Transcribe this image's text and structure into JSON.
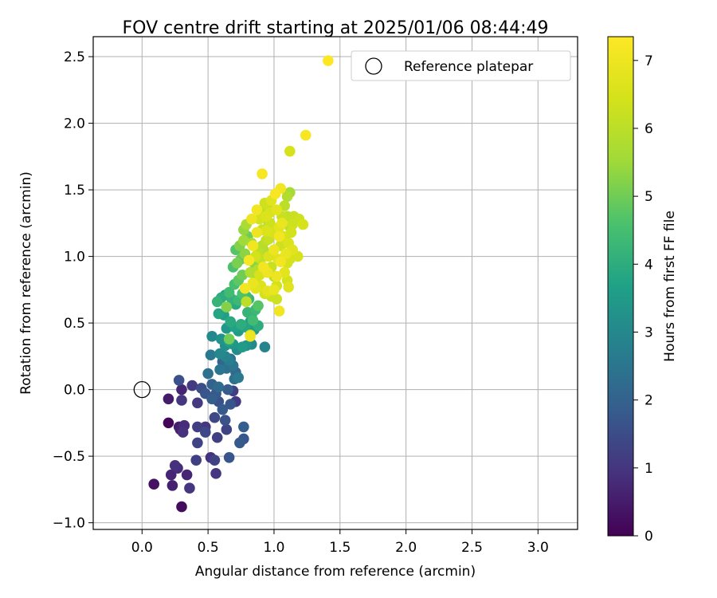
{
  "chart_data": {
    "type": "scatter",
    "title": "FOV centre drift starting at 2025/01/06 08:44:49",
    "xlabel": "Angular distance from reference (arcmin)",
    "ylabel": "Rotation from reference (arcmin)",
    "xlim": [
      -0.37,
      3.3
    ],
    "ylim": [
      -1.05,
      2.65
    ],
    "xticks": [
      "0.0",
      "0.5",
      "1.0",
      "1.5",
      "2.0",
      "2.5",
      "3.0"
    ],
    "yticks": [
      "−1.0",
      "−0.5",
      "0.0",
      "0.5",
      "1.0",
      "1.5",
      "2.0",
      "2.5"
    ],
    "grid": true,
    "legend": {
      "location": "top-right",
      "entries": [
        "Reference platepar"
      ]
    },
    "reference_point": {
      "name": "Reference platepar",
      "x": 0.0,
      "y": 0.0
    },
    "colorbar": {
      "label": "Hours from first FF file",
      "colormap": "viridis",
      "range": [
        0,
        7.35
      ],
      "ticks": [
        "0",
        "1",
        "2",
        "3",
        "4",
        "5",
        "6",
        "7"
      ]
    },
    "points_columns": [
      "x",
      "y",
      "hours"
    ],
    "points": [
      [
        0.3,
        -0.88,
        0.2
      ],
      [
        0.09,
        -0.71,
        0.3
      ],
      [
        0.2,
        -0.25,
        0.1
      ],
      [
        0.22,
        -0.64,
        0.7
      ],
      [
        0.23,
        -0.72,
        0.6
      ],
      [
        0.25,
        -0.57,
        0.9
      ],
      [
        0.27,
        -0.59,
        0.8
      ],
      [
        0.34,
        -0.64,
        0.7
      ],
      [
        0.36,
        -0.74,
        1.0
      ],
      [
        0.2,
        -0.07,
        0.5
      ],
      [
        0.29,
        -0.3,
        0.6
      ],
      [
        0.28,
        -0.28,
        0.5
      ],
      [
        0.31,
        -0.32,
        0.9
      ],
      [
        0.32,
        -0.27,
        0.8
      ],
      [
        0.3,
        0.0,
        0.7
      ],
      [
        0.3,
        -0.08,
        1.0
      ],
      [
        0.28,
        0.07,
        1.6
      ],
      [
        0.38,
        0.03,
        1.1
      ],
      [
        0.42,
        -0.28,
        1.2
      ],
      [
        0.42,
        -0.4,
        1.3
      ],
      [
        0.41,
        -0.53,
        1.2
      ],
      [
        0.42,
        -0.1,
        1.1
      ],
      [
        0.45,
        0.01,
        1.5
      ],
      [
        0.48,
        -0.03,
        1.7
      ],
      [
        0.48,
        -0.28,
        1.0
      ],
      [
        0.48,
        -0.32,
        1.4
      ],
      [
        0.52,
        -0.51,
        0.9
      ],
      [
        0.55,
        -0.53,
        1.3
      ],
      [
        0.56,
        -0.63,
        1.0
      ],
      [
        0.57,
        -0.36,
        1.2
      ],
      [
        0.55,
        -0.21,
        1.4
      ],
      [
        0.56,
        -0.03,
        1.8
      ],
      [
        0.53,
        0.04,
        2.0
      ],
      [
        0.5,
        0.12,
        2.4
      ],
      [
        0.53,
        -0.07,
        1.9
      ],
      [
        0.58,
        -0.09,
        1.6
      ],
      [
        0.58,
        0.02,
        2.2
      ],
      [
        0.61,
        -0.15,
        1.8
      ],
      [
        0.63,
        -0.23,
        1.6
      ],
      [
        0.66,
        -0.51,
        1.7
      ],
      [
        0.64,
        -0.3,
        1.3
      ],
      [
        0.65,
        0.0,
        1.9
      ],
      [
        0.67,
        -0.11,
        1.7
      ],
      [
        0.69,
        -0.01,
        1.2
      ],
      [
        0.71,
        -0.09,
        1.1
      ],
      [
        0.74,
        -0.4,
        1.8
      ],
      [
        0.77,
        -0.37,
        1.7
      ],
      [
        0.77,
        -0.28,
        1.9
      ],
      [
        0.7,
        0.08,
        2.4
      ],
      [
        0.73,
        0.09,
        2.6
      ],
      [
        0.59,
        0.15,
        2.5
      ],
      [
        0.61,
        0.21,
        2.1
      ],
      [
        0.64,
        0.16,
        2.4
      ],
      [
        0.66,
        0.22,
        2.7
      ],
      [
        0.67,
        0.23,
        2.3
      ],
      [
        0.71,
        0.13,
        2.2
      ],
      [
        0.69,
        0.18,
        2.5
      ],
      [
        0.63,
        0.25,
        2.9
      ],
      [
        0.59,
        0.27,
        3.0
      ],
      [
        0.52,
        0.26,
        2.6
      ],
      [
        0.53,
        0.4,
        3.0
      ],
      [
        0.6,
        0.38,
        3.3
      ],
      [
        0.63,
        0.33,
        3.2
      ],
      [
        0.66,
        0.36,
        3.6
      ],
      [
        0.69,
        0.34,
        3.4
      ],
      [
        0.72,
        0.3,
        3.1
      ],
      [
        0.76,
        0.32,
        3.5
      ],
      [
        0.79,
        0.33,
        3.3
      ],
      [
        0.83,
        0.34,
        3.0
      ],
      [
        0.93,
        0.32,
        2.9
      ],
      [
        0.58,
        0.57,
        3.8
      ],
      [
        0.62,
        0.56,
        3.6
      ],
      [
        0.64,
        0.46,
        3.4
      ],
      [
        0.67,
        0.51,
        3.9
      ],
      [
        0.7,
        0.47,
        3.7
      ],
      [
        0.73,
        0.44,
        3.5
      ],
      [
        0.75,
        0.49,
        4.0
      ],
      [
        0.78,
        0.47,
        3.8
      ],
      [
        0.82,
        0.51,
        3.6
      ],
      [
        0.85,
        0.45,
        3.5
      ],
      [
        0.57,
        0.66,
        4.2
      ],
      [
        0.6,
        0.69,
        4.0
      ],
      [
        0.63,
        0.71,
        3.7
      ],
      [
        0.66,
        0.73,
        4.4
      ],
      [
        0.68,
        0.68,
        4.1
      ],
      [
        0.71,
        0.64,
        3.9
      ],
      [
        0.73,
        0.67,
        4.3
      ],
      [
        0.76,
        0.72,
        4.6
      ],
      [
        0.79,
        0.7,
        4.4
      ],
      [
        0.81,
        0.68,
        4.2
      ],
      [
        0.83,
        0.56,
        3.9
      ],
      [
        0.86,
        0.6,
        4.3
      ],
      [
        0.88,
        0.63,
        4.7
      ],
      [
        0.7,
        0.79,
        4.5
      ],
      [
        0.73,
        0.82,
        4.8
      ],
      [
        0.76,
        0.86,
        5.0
      ],
      [
        0.69,
        0.92,
        4.6
      ],
      [
        0.72,
        0.95,
        5.1
      ],
      [
        0.75,
        0.98,
        4.9
      ],
      [
        0.78,
        1.02,
        5.3
      ],
      [
        0.71,
        1.05,
        4.7
      ],
      [
        0.74,
        1.08,
        5.2
      ],
      [
        0.77,
        1.12,
        5.5
      ],
      [
        0.8,
        1.15,
        5.0
      ],
      [
        0.77,
        1.2,
        5.4
      ],
      [
        0.79,
        1.24,
        5.7
      ],
      [
        0.83,
        1.1,
        5.6
      ],
      [
        0.85,
        0.95,
        5.3
      ],
      [
        0.82,
        0.88,
        5.8
      ],
      [
        0.86,
        0.82,
        5.5
      ],
      [
        0.88,
        0.9,
        5.9
      ],
      [
        0.9,
        0.98,
        6.1
      ],
      [
        0.92,
        1.05,
        5.8
      ],
      [
        0.94,
        1.12,
        6.0
      ],
      [
        0.91,
        1.2,
        6.2
      ],
      [
        0.89,
        1.28,
        6.4
      ],
      [
        0.93,
        1.32,
        5.9
      ],
      [
        0.95,
        1.38,
        6.1
      ],
      [
        0.97,
        1.25,
        6.3
      ],
      [
        0.99,
        1.18,
        6.5
      ],
      [
        0.96,
        1.0,
        6.6
      ],
      [
        0.98,
        0.92,
        6.2
      ],
      [
        1.0,
        0.85,
        6.0
      ],
      [
        1.02,
        0.78,
        6.4
      ],
      [
        1.03,
        0.98,
        6.7
      ],
      [
        1.05,
        1.08,
        6.3
      ],
      [
        1.07,
        1.15,
        6.5
      ],
      [
        1.04,
        1.22,
        6.8
      ],
      [
        1.06,
        1.3,
        6.2
      ],
      [
        1.08,
        1.38,
        6.0
      ],
      [
        1.1,
        1.45,
        5.8
      ],
      [
        1.12,
        1.48,
        5.6
      ],
      [
        1.09,
        1.02,
        6.9
      ],
      [
        1.11,
        1.1,
        6.6
      ],
      [
        1.13,
        1.18,
        6.4
      ],
      [
        1.14,
        1.05,
        6.7
      ],
      [
        1.1,
        0.95,
        6.5
      ],
      [
        1.08,
        0.88,
        6.8
      ],
      [
        0.9,
        0.78,
        6.6
      ],
      [
        0.93,
        0.72,
        6.4
      ],
      [
        0.95,
        0.74,
        6.8
      ],
      [
        0.98,
        0.7,
        6.3
      ],
      [
        1.0,
        0.75,
        6.9
      ],
      [
        1.02,
        0.85,
        7.0
      ],
      [
        0.86,
        0.76,
        6.7
      ],
      [
        0.84,
        0.8,
        6.9
      ],
      [
        0.89,
        0.86,
        6.5
      ],
      [
        0.92,
        0.92,
        7.1
      ],
      [
        0.95,
        0.88,
        7.0
      ],
      [
        1.05,
        0.96,
        7.1
      ],
      [
        1.0,
        1.05,
        7.0
      ],
      [
        1.04,
        1.15,
        7.1
      ],
      [
        1.06,
        1.25,
        6.9
      ],
      [
        1.02,
        1.35,
        6.8
      ],
      [
        0.98,
        1.42,
        6.7
      ],
      [
        1.01,
        1.47,
        7.2
      ],
      [
        0.87,
        1.18,
        7.0
      ],
      [
        0.84,
        1.08,
        7.1
      ],
      [
        0.81,
        0.97,
        7.2
      ],
      [
        0.78,
        0.76,
        7.1
      ],
      [
        0.82,
        0.4,
        7.0
      ],
      [
        0.82,
        0.41,
        6.5
      ],
      [
        0.79,
        0.66,
        6.0
      ],
      [
        0.64,
        0.62,
        5.2
      ],
      [
        0.66,
        0.38,
        5.0
      ],
      [
        0.9,
        1.0,
        5.5
      ],
      [
        0.94,
        1.3,
        6.6
      ],
      [
        0.96,
        1.24,
        5.7
      ],
      [
        1.1,
        1.3,
        6.1
      ],
      [
        1.14,
        1.24,
        6.3
      ],
      [
        1.15,
        1.3,
        6.2
      ],
      [
        1.12,
        1.22,
        6.0
      ],
      [
        1.09,
        1.12,
        5.9
      ],
      [
        1.12,
        0.98,
        6.2
      ],
      [
        1.1,
        0.82,
        6.4
      ],
      [
        1.11,
        0.77,
        6.7
      ],
      [
        1.02,
        0.68,
        6.3
      ],
      [
        1.04,
        0.59,
        7.1
      ],
      [
        0.91,
        1.62,
        7.2
      ],
      [
        1.05,
        1.51,
        7.1
      ],
      [
        0.93,
        1.4,
        6.3
      ],
      [
        0.95,
        1.36,
        6.0
      ],
      [
        0.97,
        1.33,
        6.5
      ],
      [
        0.94,
        1.19,
        6.6
      ],
      [
        0.96,
        1.13,
        6.2
      ],
      [
        0.91,
        1.08,
        5.9
      ],
      [
        0.88,
        1.03,
        6.0
      ],
      [
        0.86,
        1.0,
        6.4
      ],
      [
        1.13,
        1.0,
        6.5
      ],
      [
        1.18,
        1.0,
        6.5
      ],
      [
        1.19,
        1.28,
        6.3
      ],
      [
        1.22,
        1.24,
        6.5
      ],
      [
        0.83,
        1.28,
        7.0
      ],
      [
        0.87,
        1.35,
        7.1
      ],
      [
        1.12,
        1.79,
        6.5
      ],
      [
        1.24,
        1.91,
        7.2
      ],
      [
        1.41,
        2.47,
        7.35
      ],
      [
        0.84,
        0.52,
        4.4
      ],
      [
        0.88,
        0.48,
        4.0
      ],
      [
        0.8,
        0.58,
        4.2
      ]
    ]
  }
}
